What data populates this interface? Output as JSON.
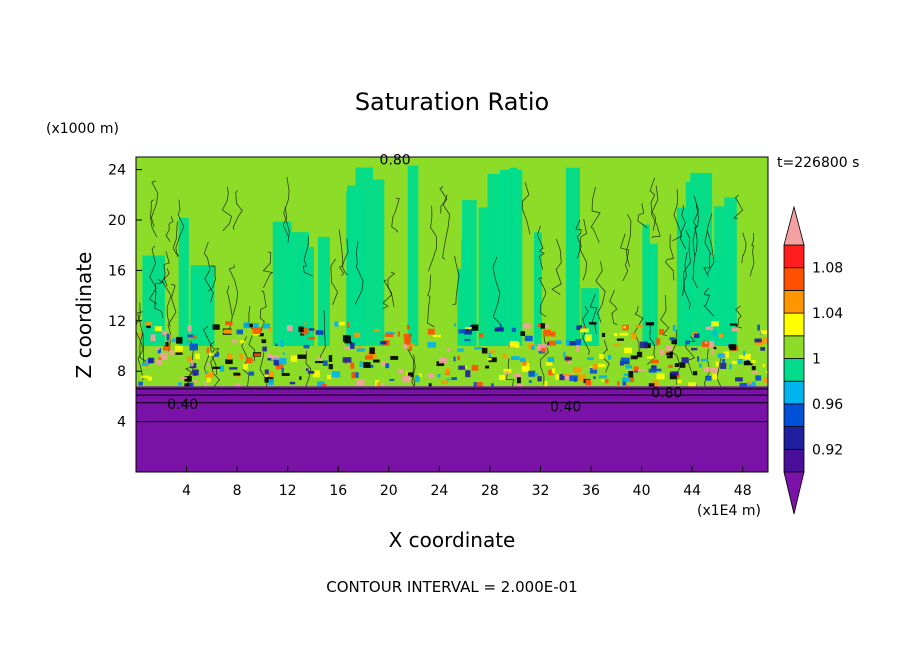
{
  "chart_data": {
    "type": "heatmap",
    "title": "Saturation Ratio",
    "time_label": "t=226800 s",
    "xlabel": "X coordinate",
    "ylabel": "Z coordinate",
    "x_unit": "(x1E4 m)",
    "y_unit": "(x1000 m)",
    "footer": "CONTOUR INTERVAL = 2.000E-01",
    "x_ticks": [
      4,
      8,
      12,
      16,
      20,
      24,
      28,
      32,
      36,
      40,
      44,
      48
    ],
    "y_ticks": [
      4,
      8,
      12,
      16,
      20,
      24
    ],
    "xlim": [
      0,
      50
    ],
    "ylim": [
      0,
      25
    ],
    "colorbar": {
      "levels": [
        0.9,
        0.92,
        0.94,
        0.96,
        0.98,
        1.0,
        1.02,
        1.04,
        1.06,
        1.08,
        1.1
      ],
      "tick_labels": [
        "0.92",
        "0.96",
        "1",
        "1.04",
        "1.08"
      ],
      "tick_values": [
        0.92,
        0.96,
        1.0,
        1.04,
        1.08
      ],
      "colors": [
        "#4a0f9a",
        "#1f1fa0",
        "#0050d8",
        "#00b4f0",
        "#00dc8c",
        "#8cdc28",
        "#ffff00",
        "#ff9600",
        "#ff5000",
        "#ff1e1e"
      ],
      "under_color": "#7a12a8",
      "over_color": "#f5a0a0"
    },
    "contour_labels": [
      {
        "text": "0.80",
        "x": 20.5,
        "y": 24.8
      },
      {
        "text": "0.40",
        "x": 3.7,
        "y": 5.4
      },
      {
        "text": "0.40",
        "x": 34.0,
        "y": 5.2
      },
      {
        "text": "0.80",
        "x": 42.0,
        "y": 6.3
      }
    ],
    "regions": {
      "dry_layer_top": 6.8,
      "dry_layer_value": 0.4,
      "cloud_layer_range": [
        7,
        12
      ],
      "upper_layer_value": 1.0
    }
  }
}
